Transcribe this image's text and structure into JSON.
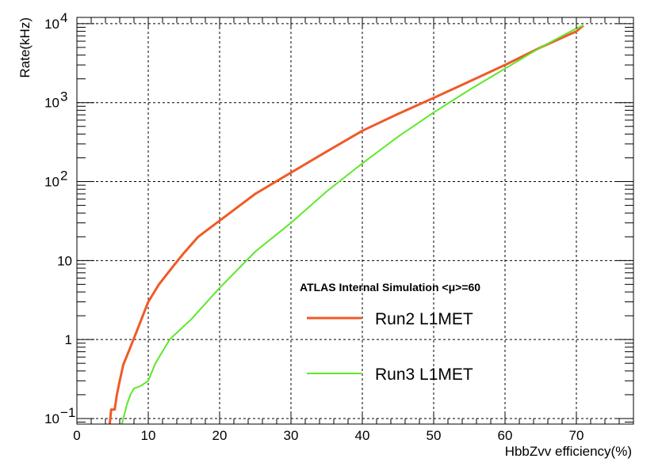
{
  "chart_data": {
    "type": "line",
    "xlabel": "HbbZvv efficiency(%)",
    "ylabel": "Rate(kHz)",
    "xlim": [
      0,
      78
    ],
    "ylim": [
      0.085,
      12000
    ],
    "yscale": "log",
    "grid": true,
    "x_ticks": [
      0,
      10,
      20,
      30,
      40,
      50,
      60,
      70
    ],
    "y_ticks": [
      {
        "value": 0.1,
        "base": "10",
        "exp": "−1"
      },
      {
        "value": 1,
        "label": "1"
      },
      {
        "value": 10,
        "label": "10"
      },
      {
        "value": 100,
        "base": "10",
        "exp": "2"
      },
      {
        "value": 1000,
        "base": "10",
        "exp": "3"
      },
      {
        "value": 10000,
        "base": "10",
        "exp": "4"
      }
    ],
    "annotation": "ATLAS Internal Simulation <μ>=60",
    "legend_position": "center-right",
    "series": [
      {
        "name": "Run2 L1MET",
        "color": "#f05a28",
        "points": [
          [
            4.6,
            0.085
          ],
          [
            4.8,
            0.13
          ],
          [
            5.3,
            0.13
          ],
          [
            5.6,
            0.2
          ],
          [
            6.0,
            0.3
          ],
          [
            6.5,
            0.48
          ],
          [
            7.5,
            0.8
          ],
          [
            8.5,
            1.35
          ],
          [
            10.0,
            3.0
          ],
          [
            11.5,
            5.0
          ],
          [
            13.5,
            8.5
          ],
          [
            15.0,
            12.5
          ],
          [
            17.0,
            20
          ],
          [
            20.0,
            32
          ],
          [
            25.0,
            70
          ],
          [
            30.0,
            130
          ],
          [
            35.0,
            240
          ],
          [
            40.0,
            440
          ],
          [
            45.0,
            720
          ],
          [
            50.0,
            1150
          ],
          [
            55.0,
            1850
          ],
          [
            60.0,
            3000
          ],
          [
            65.0,
            5000
          ],
          [
            70.0,
            8000
          ],
          [
            71.0,
            9500
          ]
        ]
      },
      {
        "name": "Run3 L1MET",
        "color": "#5ee82a",
        "points": [
          [
            6.3,
            0.085
          ],
          [
            6.5,
            0.1
          ],
          [
            7.0,
            0.15
          ],
          [
            7.5,
            0.2
          ],
          [
            8.0,
            0.24
          ],
          [
            9.0,
            0.26
          ],
          [
            10.0,
            0.3
          ],
          [
            11.0,
            0.5
          ],
          [
            13.0,
            1.0
          ],
          [
            16.0,
            1.8
          ],
          [
            20.0,
            4.5
          ],
          [
            25.0,
            13
          ],
          [
            30.0,
            30
          ],
          [
            35.0,
            75
          ],
          [
            40.0,
            170
          ],
          [
            45.0,
            370
          ],
          [
            50.0,
            750
          ],
          [
            55.0,
            1450
          ],
          [
            60.0,
            2700
          ],
          [
            65.0,
            5000
          ],
          [
            70.0,
            8700
          ],
          [
            71.0,
            9500
          ]
        ]
      }
    ]
  }
}
